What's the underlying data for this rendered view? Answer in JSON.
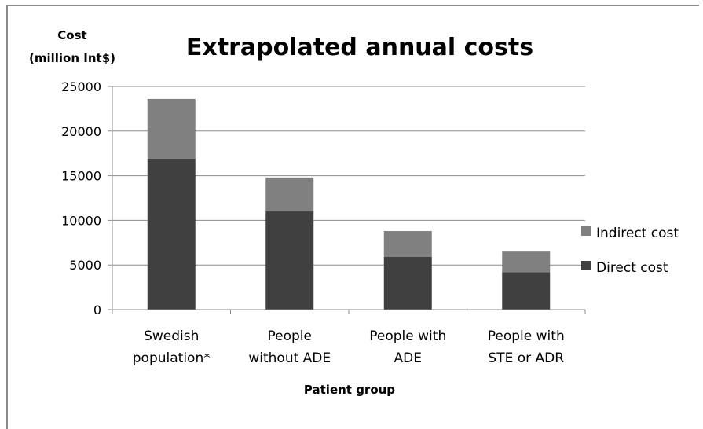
{
  "chart_data": {
    "type": "bar",
    "stacked": true,
    "title": "Extrapolated annual costs",
    "ylabel_lines": [
      "Cost",
      "(million Int$)"
    ],
    "xlabel": "Patient group",
    "ylim": [
      0,
      25000
    ],
    "yticks": [
      0,
      5000,
      10000,
      15000,
      20000,
      25000
    ],
    "grid": true,
    "legend_position": "right",
    "categories": [
      [
        "Swedish",
        "population*"
      ],
      [
        "People",
        "without ADE"
      ],
      [
        "People with",
        "ADE"
      ],
      [
        "People with",
        "STE or ADR"
      ]
    ],
    "series": [
      {
        "name": "Direct cost",
        "values": [
          16900,
          11000,
          5900,
          4200
        ],
        "color": "#404040"
      },
      {
        "name": "Indirect cost",
        "values": [
          6700,
          3800,
          2900,
          2300
        ],
        "color": "#808080"
      }
    ]
  }
}
